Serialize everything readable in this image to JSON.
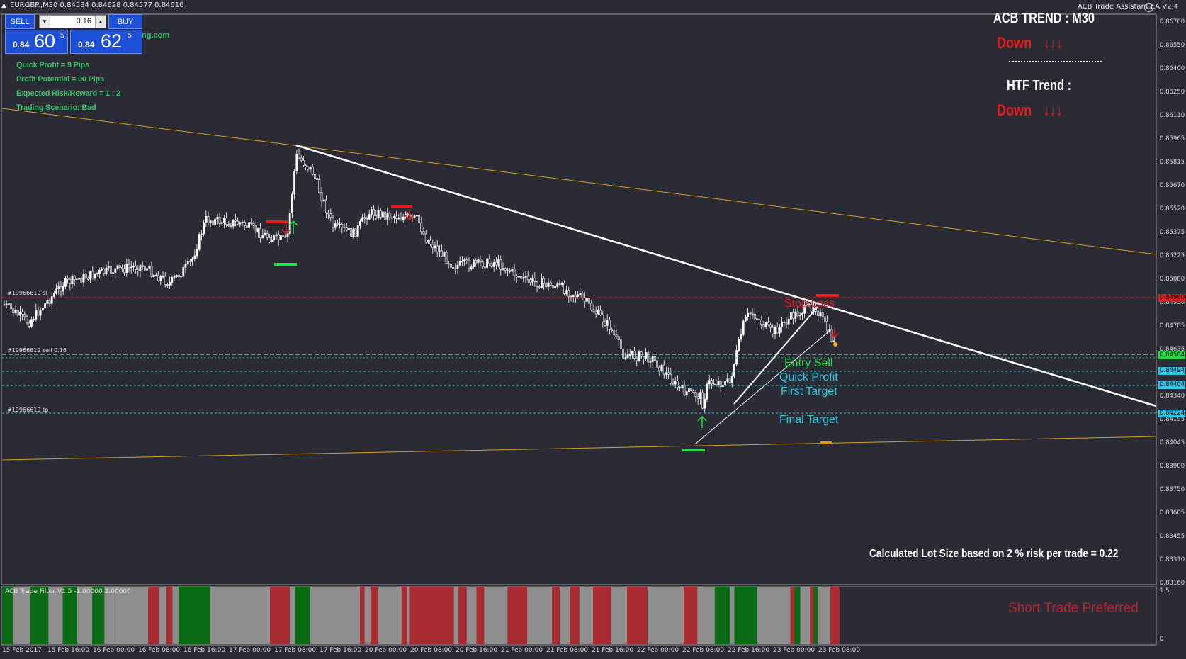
{
  "window": {
    "title": "EURGBP.,M30  0.84584 0.84628 0.84577 0.84610",
    "ea_title": "ACB Trade Assistant EA  V2.4"
  },
  "trade_panel": {
    "sell_label": "SELL",
    "buy_label": "BUY",
    "lot_value": "0.16",
    "bid_small": "0.84",
    "bid_big": "60",
    "bid_sup": "5",
    "ask_small": "0.84",
    "ask_big": "62",
    "ask_sup": "5",
    "brand_fragment": "ng.com"
  },
  "info_panel": [
    "Quick Profit = 9 Pips",
    "Profit Potential = 90 Pips",
    "Expected Risk/Reward = 1 : 2",
    "Trading Scenario: Bad"
  ],
  "trend_panel": {
    "acb_trend_label": "ACB TREND :  M30",
    "acb_trend_value": "Down",
    "htf_trend_label": "HTF Trend :",
    "htf_trend_value": "Down",
    "arrows": "↓↓↓"
  },
  "level_labels": {
    "stop_loss": "Stop Loss",
    "entry_sell": "Entry Sell",
    "quick_profit": "Quick Profit",
    "first_target": "First Target",
    "final_target": "Final Target"
  },
  "order_labels": {
    "sl": "#19966619 sl",
    "sell": "#19966619 sell 0.16",
    "tp": "#19966619 tp"
  },
  "lot_calc": "Calculated Lot Size based on 2 % risk per trade =  0.22",
  "price_axis": [
    "0.86700",
    "0.86550",
    "0.86400",
    "0.86250",
    "0.86110",
    "0.85965",
    "0.85815",
    "0.85670",
    "0.85520",
    "0.85375",
    "0.85225",
    "0.85080",
    "0.84930",
    "0.84785",
    "0.84635",
    "0.84490",
    "0.84340",
    "0.84195",
    "0.84045",
    "0.83900",
    "0.83750",
    "0.83605",
    "0.83455",
    "0.83310",
    "0.83160"
  ],
  "price_tags": {
    "stop": "0.84960",
    "current": "0.84584",
    "quick": "0.84494",
    "first": "0.84404",
    "final": "0.84224"
  },
  "time_axis": [
    "15 Feb 2017",
    "15 Feb 16:00",
    "16 Feb 00:00",
    "16 Feb 08:00",
    "16 Feb 16:00",
    "17 Feb 00:00",
    "17 Feb 08:00",
    "17 Feb 16:00",
    "20 Feb 00:00",
    "20 Feb 08:00",
    "20 Feb 16:00",
    "21 Feb 00:00",
    "21 Feb 08:00",
    "21 Feb 16:00",
    "22 Feb 00:00",
    "22 Feb 08:00",
    "22 Feb 16:00",
    "23 Feb 00:00",
    "23 Feb 08:00"
  ],
  "filter": {
    "title": "ACB Trade Filter V1.5 -1.00000 2.00000",
    "preferred": "Short Trade Preferred",
    "scale_top": "1.5",
    "scale_bottom": "0",
    "segments": [
      [
        "g",
        3,
        17
      ],
      [
        "s",
        17,
        40
      ],
      [
        "g",
        40,
        64
      ],
      [
        "s",
        64,
        83
      ],
      [
        "g",
        83,
        102
      ],
      [
        "s",
        102,
        122
      ],
      [
        "g",
        122,
        138
      ],
      [
        "s",
        138,
        152
      ],
      [
        "s",
        152,
        196
      ],
      [
        "r",
        196,
        210
      ],
      [
        "s",
        210,
        220
      ],
      [
        "r",
        220,
        228
      ],
      [
        "s",
        228,
        236
      ],
      [
        "g",
        236,
        278
      ],
      [
        "s",
        278,
        357
      ],
      [
        "r",
        357,
        383
      ],
      [
        "s",
        383,
        390
      ],
      [
        "g",
        390,
        410
      ],
      [
        "s",
        410,
        476
      ],
      [
        "r",
        476,
        482
      ],
      [
        "s",
        482,
        490
      ],
      [
        "r",
        490,
        500
      ],
      [
        "s",
        500,
        531
      ],
      [
        "r",
        531,
        538
      ],
      [
        "s",
        538,
        541
      ],
      [
        "r",
        541,
        600
      ],
      [
        "s",
        600,
        606
      ],
      [
        "r",
        606,
        617
      ],
      [
        "s",
        617,
        630
      ],
      [
        "r",
        630,
        640
      ],
      [
        "s",
        640,
        671
      ],
      [
        "r",
        671,
        697
      ],
      [
        "s",
        697,
        730
      ],
      [
        "r",
        730,
        740
      ],
      [
        "s",
        740,
        754
      ],
      [
        "r",
        754,
        766
      ],
      [
        "s",
        766,
        784
      ],
      [
        "r",
        784,
        808
      ],
      [
        "s",
        808,
        829
      ],
      [
        "r",
        829,
        856
      ],
      [
        "s",
        856,
        904
      ],
      [
        "r",
        904,
        922
      ],
      [
        "s",
        922,
        945
      ],
      [
        "g",
        945,
        965
      ],
      [
        "s",
        965,
        971
      ],
      [
        "g",
        971,
        1001
      ],
      [
        "s",
        1001,
        1045
      ],
      [
        "r",
        1045,
        1050
      ],
      [
        "g",
        1050,
        1058
      ],
      [
        "s",
        1058,
        1071
      ],
      [
        "r",
        1071,
        1076
      ],
      [
        "g",
        1076,
        1081
      ],
      [
        "s",
        1081,
        1098
      ],
      [
        "r",
        1098,
        1110
      ]
    ]
  },
  "colors": {
    "background": "#2b2b35",
    "bull": "#ffffff",
    "trendline": "#d9a020",
    "signal_up": "#1ee04a",
    "signal_down": "#e31e1e",
    "filter_green": "#0a6b14",
    "filter_red": "#a82c2f",
    "filter_gray": "#8e8e8e"
  }
}
